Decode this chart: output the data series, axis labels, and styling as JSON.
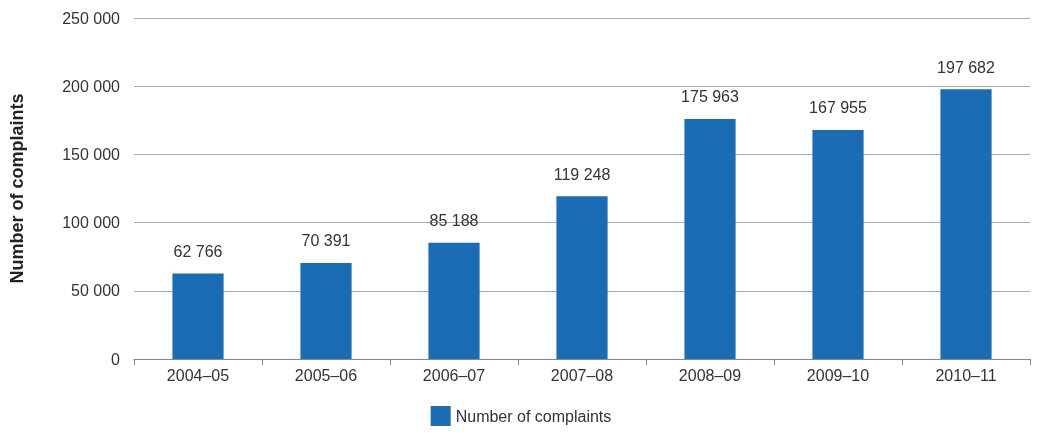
{
  "chart_data": {
    "type": "bar",
    "ylabel": "Number of complaints",
    "categories": [
      "2004–05",
      "2005–06",
      "2006–07",
      "2007–08",
      "2008–09",
      "2009–10",
      "2010–11"
    ],
    "series": [
      {
        "name": "Number of complaints",
        "color": "#1a6cb5",
        "values": [
          62766,
          70391,
          85188,
          119248,
          175963,
          167955,
          197682
        ],
        "value_labels": [
          "62 766",
          "70 391",
          "85 188",
          "119 248",
          "175 963",
          "167 955",
          "197 682"
        ]
      }
    ],
    "ylim": [
      0,
      250000
    ],
    "yticks": [
      0,
      {
        "value": 50000,
        "label": "50 000"
      },
      {
        "value": 100000,
        "label": "100 000"
      },
      {
        "value": 150000,
        "label": "150 000"
      },
      {
        "value": 200000,
        "label": "200 000"
      },
      {
        "value": 250000,
        "label": "250 000"
      }
    ],
    "grid": "y",
    "legend": "bottom"
  }
}
